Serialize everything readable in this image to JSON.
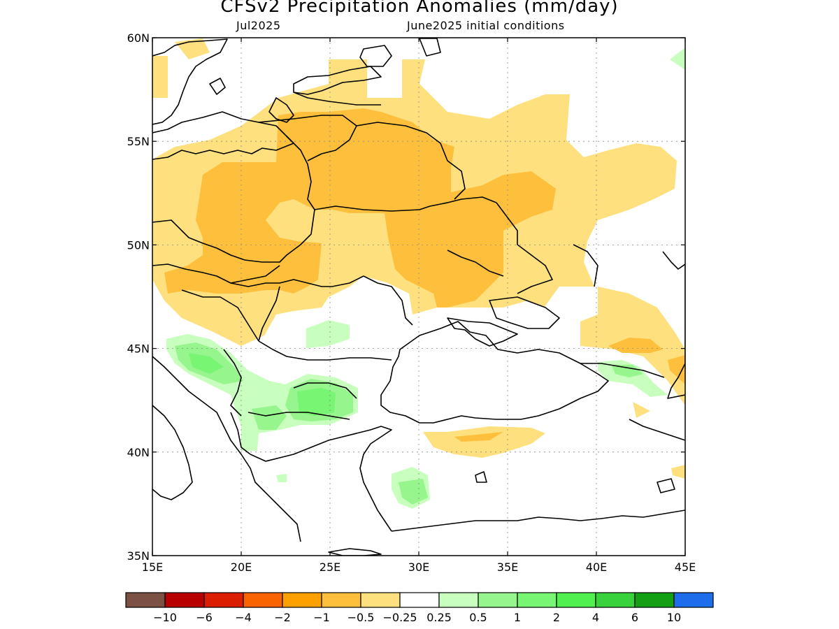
{
  "title": "CFSv2 Precipitation Anomalies (mm/day)",
  "subtitle_left": "Jul2025",
  "subtitle_right": "June2025 initial conditions",
  "lon_ticks": [
    {
      "value": 15,
      "label": "15E"
    },
    {
      "value": 20,
      "label": "20E"
    },
    {
      "value": 25,
      "label": "25E"
    },
    {
      "value": 30,
      "label": "30E"
    },
    {
      "value": 35,
      "label": "35E"
    },
    {
      "value": 40,
      "label": "40E"
    },
    {
      "value": 45,
      "label": "45E"
    }
  ],
  "lat_ticks": [
    {
      "value": 60,
      "label": "60N"
    },
    {
      "value": 55,
      "label": "55N"
    },
    {
      "value": 50,
      "label": "50N"
    },
    {
      "value": 45,
      "label": "45N"
    },
    {
      "value": 40,
      "label": "40N"
    },
    {
      "value": 35,
      "label": "35N"
    }
  ],
  "extent": {
    "lon": [
      15,
      45
    ],
    "lat": [
      35,
      60
    ]
  },
  "colorbar": {
    "colors": [
      "#7b5143",
      "#b80000",
      "#dc1e00",
      "#fa6400",
      "#fea000",
      "#fec03c",
      "#fee17e",
      "#ffffff",
      "#c8ffbe",
      "#96f58c",
      "#78f573",
      "#50f050",
      "#37d23c",
      "#14a014",
      "#1e6eeb"
    ],
    "labels": [
      "-10",
      "-6",
      "-4",
      "-2",
      "-1",
      "-0.5",
      "-0.25",
      "0.25",
      "0.5",
      "1",
      "2",
      "4",
      "6",
      "10"
    ]
  }
}
